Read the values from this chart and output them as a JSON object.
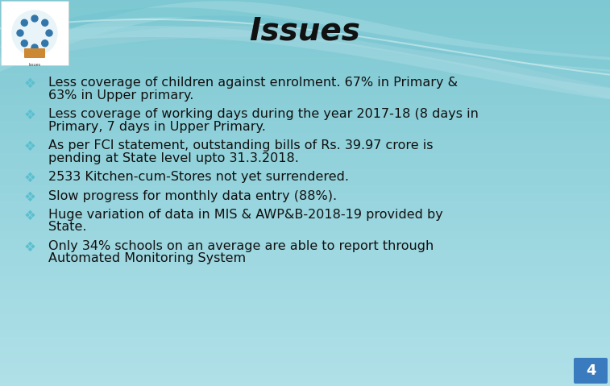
{
  "title": "Issues",
  "title_fontsize": 28,
  "title_color": "#111111",
  "bg_color": "#8ed0d8",
  "bg_color_light": "#b0dfe6",
  "bullet_symbol": "❖",
  "bullet_color": "#5abfcf",
  "text_color": "#111111",
  "text_fontsize": 11.5,
  "bullet_items": [
    [
      "Less coverage of children against enrolment. 67% in Primary &",
      "63% in Upper primary."
    ],
    [
      "Less coverage of working days during the year 2017-18 (8 days in",
      "Primary, 7 days in Upper Primary."
    ],
    [
      "As per FCI statement, outstanding bills of Rs. 39.97 crore is",
      "pending at State level upto 31.3.2018."
    ],
    [
      "2533 Kitchen-cum-Stores not yet surrendered.",
      ""
    ],
    [
      "Slow progress for monthly data entry (88%).",
      ""
    ],
    [
      "Huge variation of data in MIS & AWP&B-2018-19 provided by",
      "State."
    ],
    [
      "Only 34% schools on an average are able to report through",
      "Automated Monitoring System"
    ]
  ],
  "page_number": "4",
  "page_num_bg": "#3a7bbf",
  "page_num_color": "#ffffff",
  "wave1_color": "#6bc4d0",
  "wave2_color": "#4aacbc",
  "wave3_color": "#5abfcf"
}
